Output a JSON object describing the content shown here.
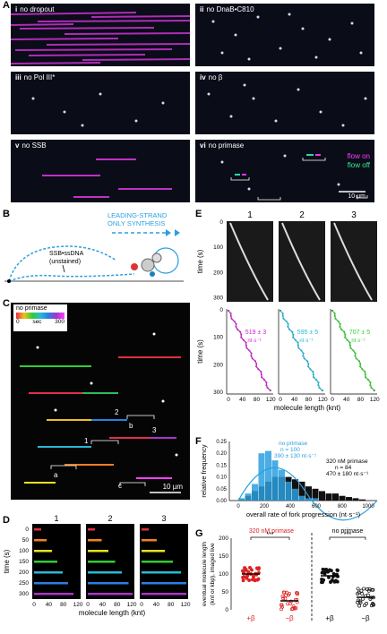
{
  "panels": {
    "A": "A",
    "B": "B",
    "C": "C",
    "D": "D",
    "E": "E",
    "F": "F",
    "G": "G"
  },
  "panelA": {
    "tiles": [
      {
        "num": "i",
        "label": "no dropout"
      },
      {
        "num": "ii",
        "label": "no DnaB•C810"
      },
      {
        "num": "iii",
        "label": "no Pol III*"
      },
      {
        "num": "iv",
        "label": "no β"
      },
      {
        "num": "v",
        "label": "no SSB"
      },
      {
        "num": "vi",
        "label": "no primase"
      }
    ],
    "flow_on": "flow on",
    "flow_off": "flow off",
    "scale": "10 µm"
  },
  "panelB": {
    "leading_l1": "LEADING-STRAND",
    "leading_l2": "ONLY SYNTHESIS",
    "ssb_l1": "SSB•ssDNA",
    "ssb_l2": "(unstained)"
  },
  "panelC": {
    "title": "no primase",
    "cb_min": "0",
    "cb_unit": "sec",
    "cb_max": "300",
    "markers": [
      "a",
      "b",
      "c",
      "1",
      "2",
      "3"
    ],
    "scale": "10 µm"
  },
  "panelD": {
    "cols": [
      "1",
      "2",
      "3"
    ],
    "ylabel": "time (s)",
    "yticks": [
      "0",
      "50",
      "100",
      "150",
      "200",
      "250",
      "300"
    ],
    "xticks": [
      "0",
      "40",
      "80",
      "120"
    ],
    "xlabel": "molecule length (knt)"
  },
  "panelE": {
    "cols": [
      "1",
      "2",
      "3"
    ],
    "ylabel": "time (s)",
    "yticks": [
      "0",
      "100",
      "200",
      "300"
    ],
    "xticks": [
      "0",
      "40",
      "80",
      "120"
    ],
    "xlabel": "molecule length (knt)",
    "rates": [
      {
        "value": "519 ± 3",
        "unit": "nt·s⁻¹",
        "color": "#cc22cc"
      },
      {
        "value": "595 ± 5",
        "unit": "nt·s⁻¹",
        "color": "#22b8d8"
      },
      {
        "value": "707 ± 5",
        "unit": "nt·s⁻¹",
        "color": "#33cc33"
      }
    ]
  },
  "panelF": {
    "ylabel": "relative frequency",
    "xlabel": "overall rate of fork progression (nt·s⁻¹)",
    "yticks": [
      "0.00",
      "0.05",
      "0.10",
      "0.15",
      "0.20",
      "0.25"
    ],
    "xticks": [
      "0",
      "200",
      "400",
      "600",
      "800",
      "1000"
    ],
    "legend1": {
      "title": "no primase",
      "n": "n = 100",
      "rate": "390 ± 130 nt·s⁻¹",
      "color": "#2a9fdf"
    },
    "legend2": {
      "title": "320 nM primase",
      "n": "n = 84",
      "rate": "470 ± 180 nt·s⁻¹",
      "color": "#111111"
    }
  },
  "panelG": {
    "title_left": "320 nM primase",
    "title_right": "no primase",
    "sig": "***",
    "ylabel_l1": "eventual molecule length",
    "ylabel_l2": "(knt or kbp), imaged live",
    "yticks": [
      "0",
      "50",
      "100",
      "150",
      "200"
    ],
    "groups": [
      "+β",
      "−β",
      "+β",
      "−β"
    ]
  }
}
